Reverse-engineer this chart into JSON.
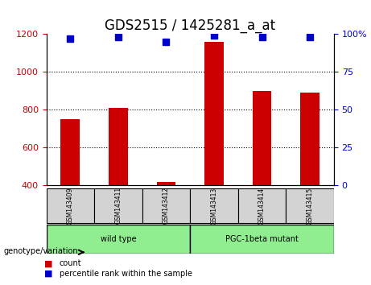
{
  "title": "GDS2515 / 1425281_a_at",
  "samples": [
    "GSM143409",
    "GSM143411",
    "GSM143412",
    "GSM143413",
    "GSM143414",
    "GSM143415"
  ],
  "counts": [
    748,
    808,
    415,
    1160,
    900,
    890
  ],
  "percentiles": [
    97,
    98,
    95,
    99,
    98,
    98
  ],
  "ylim_left": [
    400,
    1200
  ],
  "ylim_right": [
    0,
    100
  ],
  "yticks_left": [
    400,
    600,
    800,
    1000,
    1200
  ],
  "yticks_right": [
    0,
    25,
    50,
    75,
    100
  ],
  "ytick_labels_right": [
    "0",
    "25",
    "50",
    "75",
    "100%"
  ],
  "bar_color": "#cc0000",
  "dot_color": "#0000cc",
  "groups": [
    {
      "label": "wild type",
      "start": 0,
      "end": 3,
      "color": "#90ee90"
    },
    {
      "label": "PGC-1beta mutant",
      "start": 3,
      "end": 6,
      "color": "#90ee90"
    }
  ],
  "genotype_label": "genotype/variation",
  "legend_count": "count",
  "legend_percentile": "percentile rank within the sample",
  "title_fontsize": 12,
  "axis_label_color_left": "#cc0000",
  "axis_label_color_right": "#0000cc",
  "bg_color": "#ffffff",
  "sample_box_color": "#d3d3d3",
  "grid_color": "#000000",
  "grid_linestyle": "dotted"
}
